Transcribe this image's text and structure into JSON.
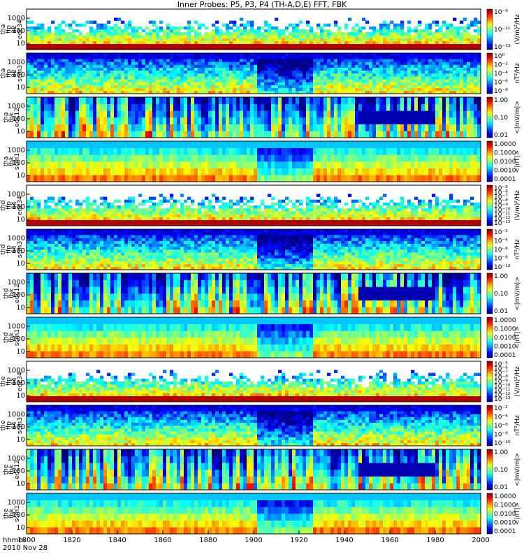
{
  "chart_data": {
    "type": "heatmap",
    "title": "Inner Probes: P5, P3, P4 (TH-A,D,E) FFT, FBK",
    "x_ticks": [
      "1800",
      "1820",
      "1840",
      "1860",
      "1880",
      "1900",
      "1920",
      "1940",
      "1960",
      "1980",
      "2000"
    ],
    "x_range": [
      1800,
      2000
    ],
    "x_label_line1": "hhmm",
    "x_label_line2": "2010 Nov 28",
    "panels": [
      {
        "probe": "tha",
        "inst": "ffp_32",
        "channel": "edc34",
        "ylabel": [
          "tha",
          "ffp",
          "32",
          "edc34"
        ],
        "yticks": [
          "10",
          "100",
          "1000"
        ],
        "unit": "(V/m)²/Hz",
        "cb_ticks": [
          "10⁻⁹",
          "10⁻¹¹",
          "10⁻¹³"
        ]
      },
      {
        "probe": "tha",
        "inst": "ffp_32",
        "channel": "scm3",
        "ylabel": [
          "tha",
          "ffp",
          "32",
          "scm3"
        ],
        "yticks": [
          "10",
          "100",
          "1000"
        ],
        "unit": "nT²/Hz",
        "cb_ticks": [
          "10⁰",
          "10⁻²",
          "10⁻⁴",
          "10⁻⁶",
          "10⁻⁸"
        ]
      },
      {
        "probe": "tha",
        "inst": "fbk",
        "channel": "edc12",
        "ylabel": [
          "tha",
          "fbk",
          "edc12"
        ],
        "yticks": [
          "10",
          "100",
          "1000"
        ],
        "unit": "<|mV/m|>",
        "cb_ticks": [
          "1.00",
          "0.10",
          "0.01"
        ]
      },
      {
        "probe": "tha",
        "inst": "fbk",
        "channel": "scm1",
        "ylabel": [
          "tha",
          "fbk",
          "scm1"
        ],
        "yticks": [
          "10",
          "100",
          "1000"
        ],
        "unit": "<|nT|>",
        "cb_ticks": [
          "1.0000",
          "0.1000",
          "0.0100",
          "0.0010",
          "0.0001"
        ]
      },
      {
        "probe": "thd",
        "inst": "ffp_64",
        "channel": "edc34",
        "ylabel": [
          "thd",
          "ffp",
          "64",
          "edc34"
        ],
        "yticks": [
          "10",
          "100",
          "1000"
        ],
        "unit": "(V/m)²/Hz",
        "cb_ticks": [
          "10⁻⁵",
          "10⁻⁶",
          "10⁻⁷",
          "10⁻⁸",
          "10⁻⁹",
          "10⁻¹⁰",
          "10⁻¹¹",
          "10⁻¹²",
          "10⁻¹³"
        ]
      },
      {
        "probe": "thd",
        "inst": "ffp_64",
        "channel": "scm3",
        "ylabel": [
          "thd",
          "ffp",
          "64",
          "scm3"
        ],
        "yticks": [
          "10",
          "100",
          "1000"
        ],
        "unit": "nT²/Hz",
        "cb_ticks": [
          "10⁻²",
          "10⁻⁴",
          "10⁻⁶",
          "10⁻⁸",
          "10⁻¹⁰"
        ]
      },
      {
        "probe": "thd",
        "inst": "fbk",
        "channel": "edc12",
        "ylabel": [
          "thd",
          "fbk",
          "edc12"
        ],
        "yticks": [
          "10",
          "100",
          "1000"
        ],
        "unit": "<|mV/m|>",
        "cb_ticks": [
          "1.00",
          "0.10",
          "0.01"
        ]
      },
      {
        "probe": "thd",
        "inst": "fbk",
        "channel": "scm1",
        "ylabel": [
          "thd",
          "fbk",
          "scm1"
        ],
        "yticks": [
          "10",
          "100",
          "1000"
        ],
        "unit": "<|nT|>",
        "cb_ticks": [
          "1.0000",
          "0.1000",
          "0.0100",
          "0.0010",
          "0.0001"
        ]
      },
      {
        "probe": "the",
        "inst": "ffp_64",
        "channel": "edc34",
        "ylabel": [
          "the",
          "ffp",
          "64",
          "edc34"
        ],
        "yticks": [
          "10",
          "100",
          "1000"
        ],
        "unit": "(V/m)²/Hz",
        "cb_ticks": [
          "10⁻⁵",
          "10⁻⁶",
          "10⁻⁷",
          "10⁻⁸",
          "10⁻⁹",
          "10⁻¹⁰",
          "10⁻¹¹",
          "10⁻¹²",
          "10⁻¹³"
        ]
      },
      {
        "probe": "the",
        "inst": "ffp_64",
        "channel": "scm3",
        "ylabel": [
          "the",
          "ffp",
          "64",
          "scm3"
        ],
        "yticks": [
          "10",
          "100",
          "1000"
        ],
        "unit": "nT²/Hz",
        "cb_ticks": [
          "10⁻²",
          "10⁻⁴",
          "10⁻⁶",
          "10⁻⁸",
          "10⁻¹⁰"
        ]
      },
      {
        "probe": "the",
        "inst": "fbk",
        "channel": "edc12",
        "ylabel": [
          "the",
          "fbk",
          "edc12"
        ],
        "yticks": [
          "10",
          "100",
          "1000"
        ],
        "unit": "<|mV/m|>",
        "cb_ticks": [
          "1.00",
          "0.10",
          "0.01"
        ]
      },
      {
        "probe": "the",
        "inst": "fbk",
        "channel": "scm1",
        "ylabel": [
          "the",
          "fbk",
          "scm1"
        ],
        "yticks": [
          "10",
          "100",
          "1000"
        ],
        "unit": "<|nT|>",
        "cb_ticks": [
          "1.0000",
          "0.1000",
          "0.0100",
          "0.0010",
          "0.0001"
        ]
      }
    ]
  }
}
